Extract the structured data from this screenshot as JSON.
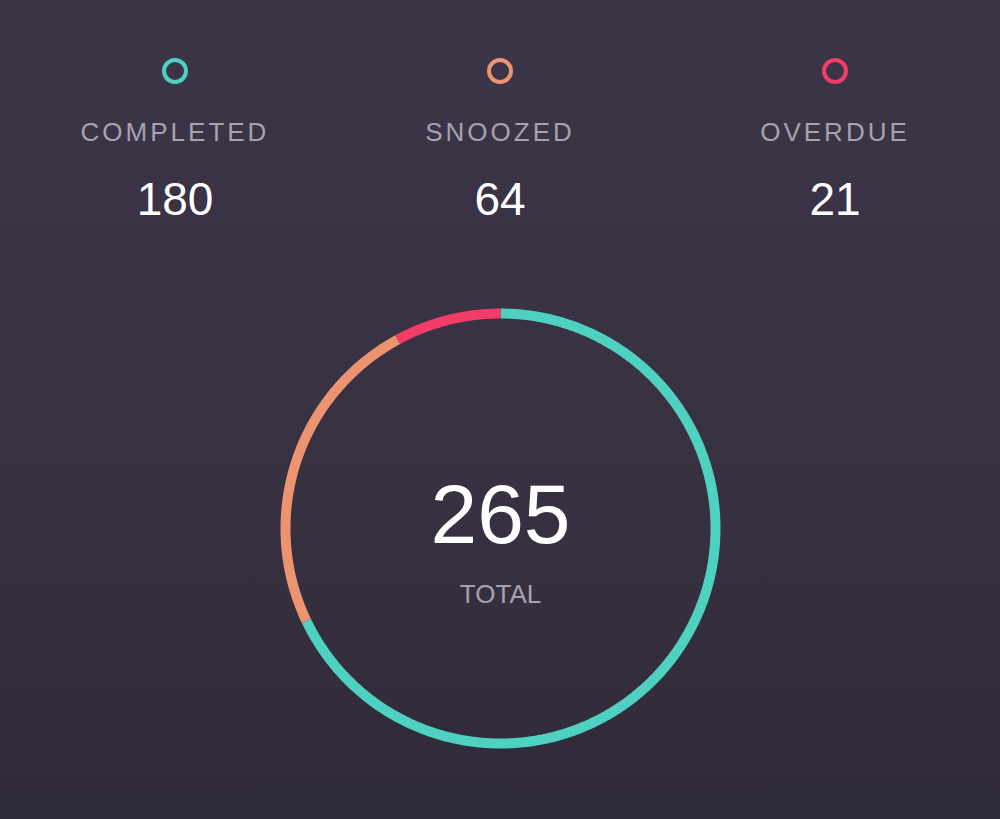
{
  "chart_data": {
    "type": "donut",
    "categories": [
      "COMPLETED",
      "SNOOZED",
      "OVERDUE"
    ],
    "values": [
      180,
      64,
      21
    ],
    "colors": [
      "#4fd1c1",
      "#ec9470",
      "#f43c68"
    ],
    "center_value": 265,
    "center_label": "TOTAL",
    "legend": "top",
    "tick_labels": false
  }
}
